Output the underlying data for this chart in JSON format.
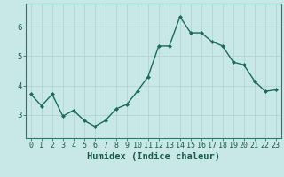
{
  "x": [
    0,
    1,
    2,
    3,
    4,
    5,
    6,
    7,
    8,
    9,
    10,
    11,
    12,
    13,
    14,
    15,
    16,
    17,
    18,
    19,
    20,
    21,
    22,
    23
  ],
  "y": [
    3.7,
    3.3,
    3.7,
    2.95,
    3.15,
    2.8,
    2.6,
    2.8,
    3.2,
    3.35,
    3.8,
    4.3,
    5.35,
    5.35,
    6.35,
    5.8,
    5.8,
    5.5,
    5.35,
    4.8,
    4.7,
    4.15,
    3.8,
    3.85
  ],
  "xlabel": "Humidex (Indice chaleur)",
  "line_color": "#1a6b5a",
  "bg_color": "#c8e8e8",
  "grid_color": "#b0d0d0",
  "axis_color": "#2a7a6a",
  "tick_color": "#1a5a4a",
  "ylim": [
    2.2,
    6.8
  ],
  "xlim": [
    -0.5,
    23.5
  ],
  "yticks": [
    3,
    4,
    5,
    6
  ],
  "xticks": [
    0,
    1,
    2,
    3,
    4,
    5,
    6,
    7,
    8,
    9,
    10,
    11,
    12,
    13,
    14,
    15,
    16,
    17,
    18,
    19,
    20,
    21,
    22,
    23
  ],
  "marker": "D",
  "marker_size": 2.0,
  "line_width": 1.0,
  "xlabel_fontsize": 7.5,
  "tick_fontsize": 6.0,
  "ytick_fontsize": 6.5
}
